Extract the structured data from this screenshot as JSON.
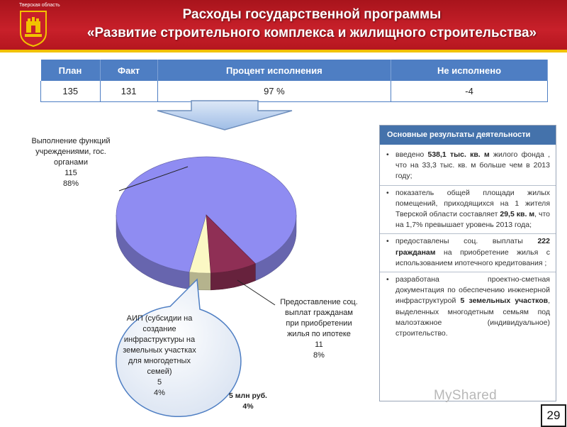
{
  "header": {
    "region": "Тверская область",
    "title_line1": "Расходы государственной программы",
    "title_line2": "«Развитие строительного комплекса  и жилищного строительства»"
  },
  "summary_table": {
    "columns": [
      "План",
      "Факт",
      "Процент исполнения",
      "Не исполнено"
    ],
    "values": [
      "135",
      "131",
      "97 %",
      "-4"
    ]
  },
  "chart_data": {
    "type": "pie",
    "slices": [
      {
        "name": "Выполнение функций учреждениями, гос. органами",
        "value": 115,
        "percent": "88%",
        "color": "#8f8cf2"
      },
      {
        "name": "Предоставление соц. выплат гражданам при приобретении жилья по ипотеке",
        "value": 11,
        "percent": "8%",
        "color": "#8f2f55"
      },
      {
        "name": "АИП (субсидии на создание инфраструктуры на земельных участках для многодетных семей)",
        "value": 5,
        "percent": "4%",
        "color": "#fbf8c4"
      }
    ]
  },
  "labels": {
    "functions": {
      "line1": "Выполнение функций",
      "line2": "учреждениями, гос.",
      "line3": "органами",
      "value": "115",
      "percent": "88%"
    },
    "mortgage": {
      "line1": "Предоставление соц.",
      "line2": "выплат гражданам",
      "line3": "при приобретении",
      "line4": "жилья по ипотеке",
      "value": "11",
      "percent": "8%"
    },
    "aip": {
      "line1": "АИП (субсидии на",
      "line2": "создание",
      "line3": "инфраструктуры на",
      "line4": "земельных участках",
      "line5": "для многодетных",
      "line6": "семей)",
      "value": "5",
      "percent": "4%"
    },
    "callout": {
      "line1": "5 млн руб.",
      "line2": "4%"
    }
  },
  "results": {
    "title": "Основные результаты деятельности",
    "items": [
      {
        "pre": "введено ",
        "bold": "538,1 тыс. кв. м",
        "post": " жилого фонда , что на 33,3 тыс. кв. м больше чем в 2013 году;"
      },
      {
        "pre": "показатель общей площади жилых помещений, приходящихся на 1 жителя Тверской области составляет ",
        "bold": "29,5 кв. м",
        "post": ", что на 1,7% превышает уровень 2013 года;"
      },
      {
        "pre": "предоставлены соц. выплаты ",
        "bold": "222 гражданам",
        "post": " на приобретение жилья с использованием ипотечного кредитования ;"
      },
      {
        "pre": "разработана проектно-сметная документация по обеспечению инженерной инфраструктурой ",
        "bold": "5 земельных участков",
        "post": ", выделенных многодетным семьям под малоэтажное (индивидуальное) строительство."
      }
    ]
  },
  "page_number": "29",
  "watermark": "MyShared"
}
